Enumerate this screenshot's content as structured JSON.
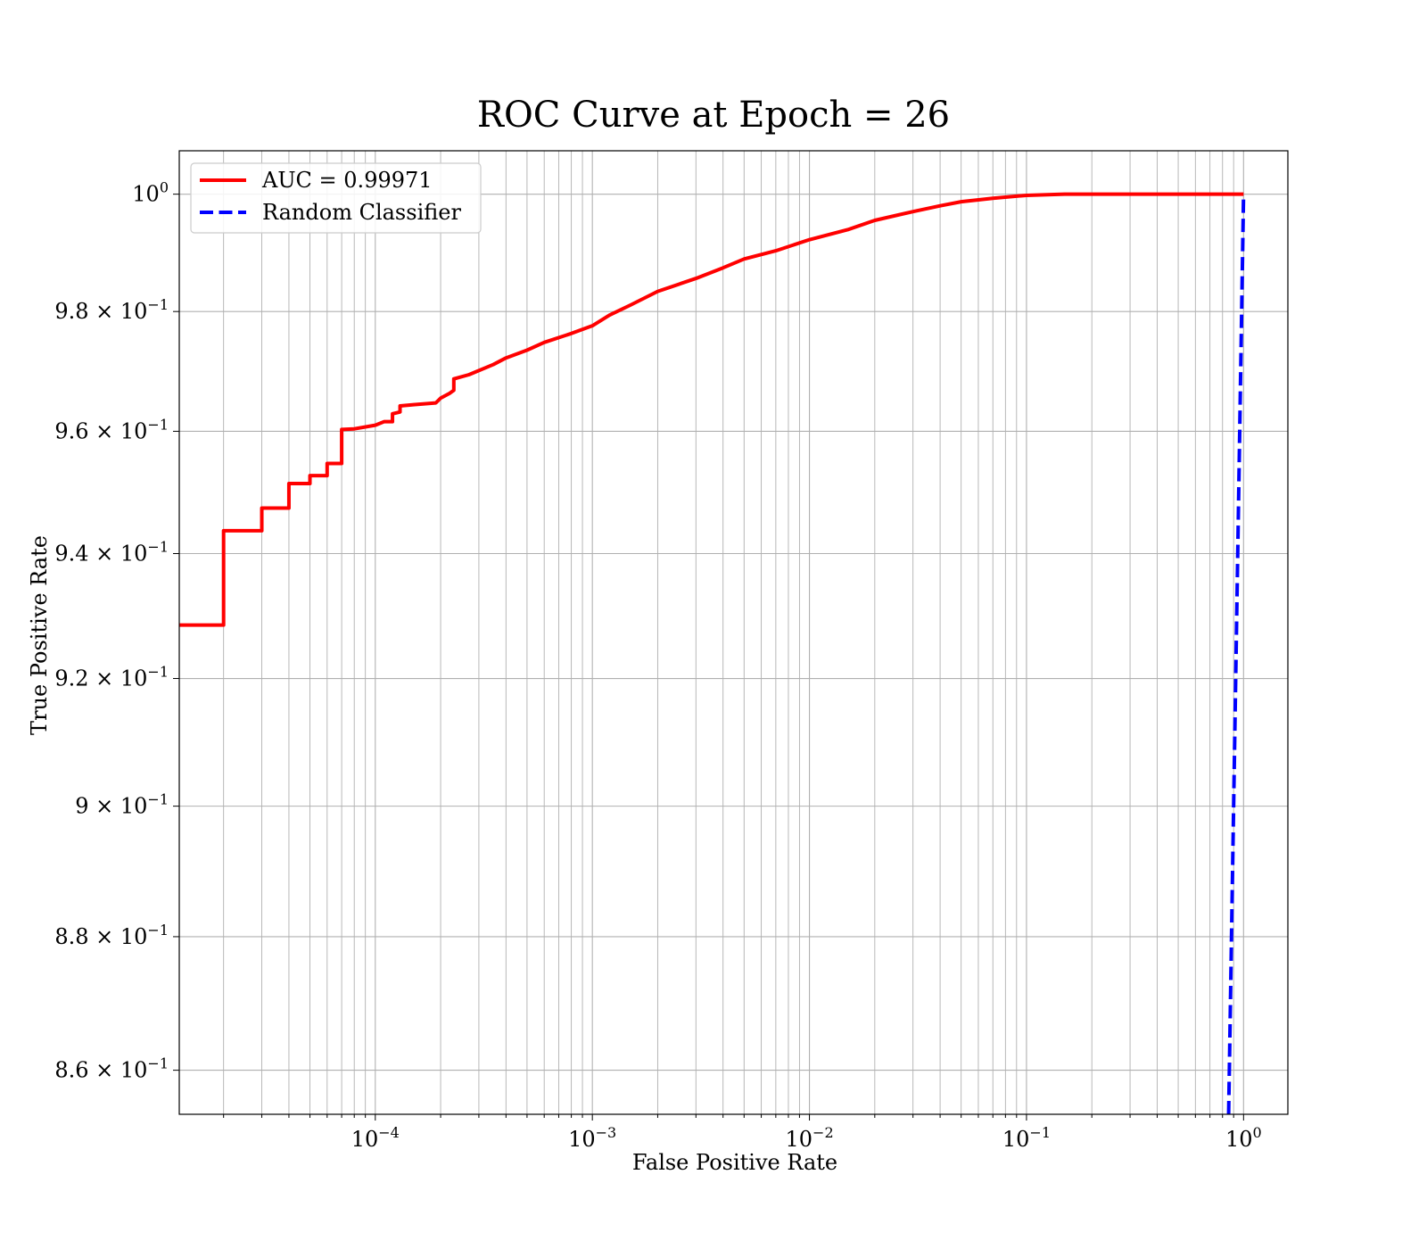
{
  "chart_data": {
    "type": "line",
    "title": "ROC Curve at Epoch = 26",
    "xlabel": "False Positive Rate",
    "ylabel": "True Positive Rate",
    "xscale": "log",
    "yscale": "log",
    "xlim": [
      1.25e-05,
      1.6
    ],
    "ylim": [
      0.8535,
      1.0075
    ],
    "grid": true,
    "grid_minor": true,
    "legend_position": "upper left",
    "x_ticks": [
      {
        "value": 0.0001,
        "base": "10",
        "exp": "−4"
      },
      {
        "value": 0.001,
        "base": "10",
        "exp": "−3"
      },
      {
        "value": 0.01,
        "base": "10",
        "exp": "−2"
      },
      {
        "value": 0.1,
        "base": "10",
        "exp": "−1"
      },
      {
        "value": 1,
        "base": "10",
        "exp": "0"
      }
    ],
    "y_ticks": [
      {
        "value": 1.0,
        "base": "10",
        "exp": "0"
      },
      {
        "value": 0.98,
        "base": "9.8 × 10",
        "exp": "−1"
      },
      {
        "value": 0.96,
        "base": "9.6 × 10",
        "exp": "−1"
      },
      {
        "value": 0.94,
        "base": "9.4 × 10",
        "exp": "−1"
      },
      {
        "value": 0.92,
        "base": "9.2 × 10",
        "exp": "−1"
      },
      {
        "value": 0.9,
        "base": "9 × 10",
        "exp": "−1"
      },
      {
        "value": 0.88,
        "base": "8.8 × 10",
        "exp": "−1"
      },
      {
        "value": 0.86,
        "base": "8.6 × 10",
        "exp": "−1"
      }
    ],
    "series": [
      {
        "name": "AUC = 0.99971",
        "color": "#ff0000",
        "style": "solid",
        "x": [
          1.25e-05,
          2e-05,
          2e-05,
          3e-05,
          3e-05,
          4e-05,
          4e-05,
          5e-05,
          5e-05,
          6e-05,
          6e-05,
          7e-05,
          7e-05,
          8e-05,
          0.0001,
          0.00011,
          0.00012,
          0.00012,
          0.00013,
          0.00013,
          0.00015,
          0.00019,
          0.0002,
          0.00022,
          0.00023,
          0.00023,
          0.00027,
          0.00035,
          0.0004,
          0.0005,
          0.0006,
          0.0008,
          0.001,
          0.0012,
          0.0015,
          0.002,
          0.003,
          0.004,
          0.005,
          0.007,
          0.01,
          0.015,
          0.02,
          0.03,
          0.04,
          0.05,
          0.07,
          0.1,
          0.15,
          0.3,
          0.5,
          1.0
        ],
        "y": [
          0.9285,
          0.9285,
          0.9437,
          0.9437,
          0.9474,
          0.9474,
          0.9514,
          0.9514,
          0.9527,
          0.9527,
          0.9547,
          0.9547,
          0.9603,
          0.9604,
          0.961,
          0.9616,
          0.9616,
          0.9629,
          0.9632,
          0.9642,
          0.9644,
          0.9647,
          0.9655,
          0.9663,
          0.9668,
          0.9687,
          0.9694,
          0.9711,
          0.9722,
          0.9735,
          0.9748,
          0.9763,
          0.9776,
          0.9794,
          0.9811,
          0.9834,
          0.9856,
          0.9874,
          0.9889,
          0.9903,
          0.9922,
          0.9939,
          0.9955,
          0.997,
          0.998,
          0.9987,
          0.9993,
          0.9998,
          1.0,
          1.0,
          1.0,
          1.0
        ]
      },
      {
        "name": "Random Classifier",
        "color": "#0000ff",
        "style": "dashed",
        "x": [
          0.8535,
          1.0
        ],
        "y": [
          0.8535,
          1.0
        ]
      }
    ]
  }
}
